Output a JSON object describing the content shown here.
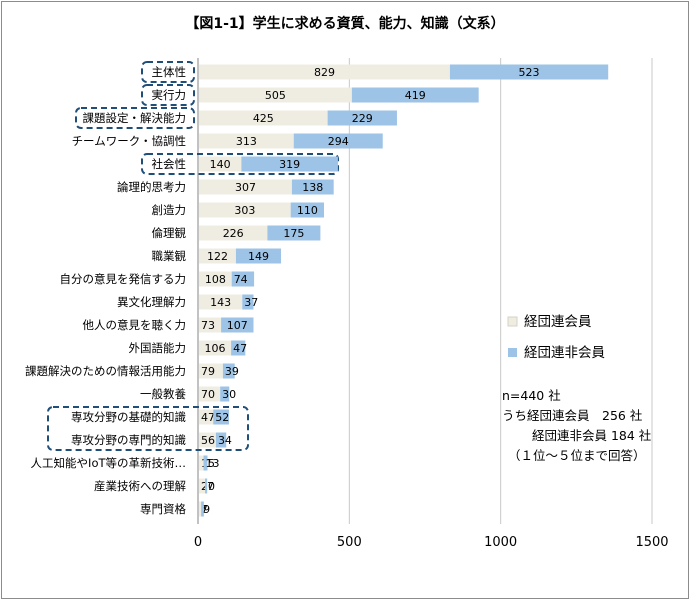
{
  "chart_data": {
    "type": "bar",
    "orientation": "horizontal",
    "stacked": true,
    "title": "【図1-1】学生に求める資質、能力、知識（文系）",
    "categories": [
      "主体性",
      "実行力",
      "課題設定・解決能力",
      "チームワーク・協調性",
      "社会性",
      "論理的思考力",
      "創造力",
      "倫理観",
      "職業観",
      "自分の意見を発信する力",
      "異文化理解力",
      "他人の意見を聴く力",
      "外国語能力",
      "課題解決のための情報活用能力",
      "一般教養",
      "専攻分野の基礎的知識",
      "専攻分野の専門的知識",
      "人工知能やIoT等の革新技術…",
      "産業技術への理解",
      "専門資格"
    ],
    "series": [
      {
        "name": "経団連会員",
        "color": "#efece2",
        "values": [
          829,
          505,
          425,
          313,
          140,
          307,
          303,
          226,
          122,
          108,
          143,
          73,
          106,
          79,
          70,
          47,
          56,
          15,
          20,
          7
        ]
      },
      {
        "name": "経団連非会員",
        "color": "#9dc3e6",
        "values": [
          523,
          419,
          229,
          294,
          319,
          138,
          110,
          175,
          149,
          74,
          37,
          107,
          47,
          39,
          30,
          52,
          34,
          13,
          7,
          9
        ]
      }
    ],
    "highlighted": [
      "主体性",
      "実行力",
      "課題設定・解決能力",
      "社会性",
      "専攻分野の基礎的知識",
      "専攻分野の専門的知識"
    ],
    "xlim": [
      0,
      1500
    ],
    "xticks": [
      "0",
      "500",
      "1000",
      "1500"
    ],
    "grid": true,
    "legend_position": "right",
    "notes": [
      "n=440 社",
      "うち経団連会員　256 社",
      "経団連非会員 184 社",
      "（１位～５位まで回答）"
    ]
  }
}
